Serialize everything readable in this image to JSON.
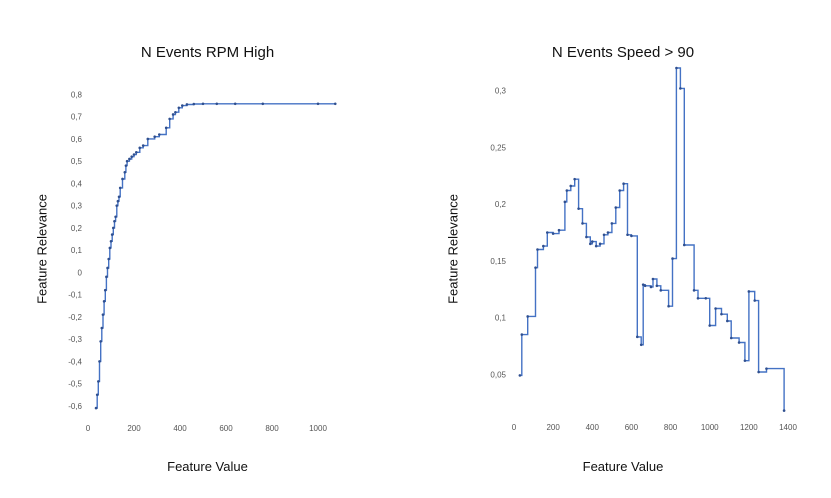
{
  "chart_data": [
    {
      "type": "line",
      "title": "N Events RPM High",
      "xlabel": "Feature Value",
      "ylabel": "Feature Relevance",
      "xlim": [
        0,
        1100
      ],
      "ylim": [
        -0.65,
        0.82
      ],
      "x_ticks": [
        0,
        200,
        400,
        600,
        800,
        1000
      ],
      "x_tick_labels": [
        "0",
        "200",
        "400",
        "600",
        "800",
        "1000"
      ],
      "y_ticks": [
        -0.6,
        -0.5,
        -0.4,
        -0.3,
        -0.2,
        -0.1,
        0,
        0.1,
        0.2,
        0.3,
        0.4,
        0.5,
        0.6,
        0.7,
        0.8
      ],
      "y_tick_labels": [
        "-0,6",
        "-0,5",
        "-0,4",
        "-0,3",
        "-0,2",
        "-0,1",
        "0",
        "0,1",
        "0,2",
        "0,3",
        "0,4",
        "0,5",
        "0,6",
        "0,7",
        "0,8"
      ],
      "grid": false,
      "color": "#4472c4",
      "step": true,
      "series": [
        {
          "x": [
            35,
            40,
            45,
            50,
            55,
            60,
            65,
            70,
            75,
            80,
            85,
            90,
            95,
            100,
            105,
            110,
            115,
            120,
            125,
            130,
            135,
            140,
            150,
            160,
            165,
            170,
            180,
            190,
            200,
            210,
            225,
            240,
            260,
            290,
            310,
            340,
            355,
            370,
            380,
            395,
            410,
            430,
            460,
            500,
            560,
            640,
            760,
            1000,
            1075
          ],
          "y": [
            -0.61,
            -0.55,
            -0.49,
            -0.4,
            -0.31,
            -0.25,
            -0.19,
            -0.13,
            -0.08,
            -0.02,
            0.02,
            0.06,
            0.11,
            0.14,
            0.17,
            0.2,
            0.23,
            0.25,
            0.3,
            0.32,
            0.34,
            0.38,
            0.42,
            0.45,
            0.48,
            0.5,
            0.51,
            0.52,
            0.53,
            0.54,
            0.56,
            0.57,
            0.6,
            0.61,
            0.62,
            0.65,
            0.69,
            0.71,
            0.72,
            0.74,
            0.75,
            0.755,
            0.757,
            0.758,
            0.758,
            0.758,
            0.758,
            0.758,
            0.758
          ]
        }
      ]
    },
    {
      "type": "line",
      "title": "N Events Speed > 90",
      "xlabel": "Feature Value",
      "ylabel": "Feature Relevance",
      "xlim": [
        0,
        1400
      ],
      "ylim": [
        0.015,
        0.32
      ],
      "x_ticks": [
        0,
        200,
        400,
        600,
        800,
        1000,
        1200,
        1400
      ],
      "x_tick_labels": [
        "0",
        "200",
        "400",
        "600",
        "800",
        "1000",
        "1200",
        "1400"
      ],
      "y_ticks": [
        0.05,
        0.1,
        0.15,
        0.2,
        0.25,
        0.3
      ],
      "y_tick_labels": [
        "0,05",
        "0,1",
        "0,15",
        "0,2",
        "0,25",
        "0,3"
      ],
      "grid": false,
      "color": "#4472c4",
      "step": true,
      "series": [
        {
          "x": [
            30,
            40,
            70,
            110,
            120,
            150,
            170,
            200,
            230,
            260,
            270,
            290,
            310,
            330,
            350,
            370,
            390,
            400,
            420,
            440,
            460,
            480,
            500,
            520,
            540,
            560,
            580,
            600,
            630,
            650,
            660,
            670,
            700,
            710,
            730,
            750,
            790,
            810,
            830,
            850,
            870,
            920,
            940,
            980,
            1000,
            1030,
            1060,
            1090,
            1110,
            1150,
            1180,
            1200,
            1230,
            1250,
            1290,
            1380
          ],
          "y": [
            0.049,
            0.085,
            0.101,
            0.144,
            0.16,
            0.163,
            0.175,
            0.174,
            0.177,
            0.202,
            0.212,
            0.216,
            0.222,
            0.196,
            0.183,
            0.171,
            0.165,
            0.167,
            0.163,
            0.165,
            0.173,
            0.175,
            0.183,
            0.197,
            0.212,
            0.218,
            0.173,
            0.172,
            0.083,
            0.076,
            0.129,
            0.128,
            0.127,
            0.134,
            0.128,
            0.124,
            0.11,
            0.152,
            0.32,
            0.302,
            0.164,
            0.124,
            0.117,
            0.117,
            0.093,
            0.108,
            0.103,
            0.097,
            0.082,
            0.078,
            0.062,
            0.123,
            0.115,
            0.052,
            0.055,
            0.018
          ]
        }
      ]
    }
  ]
}
